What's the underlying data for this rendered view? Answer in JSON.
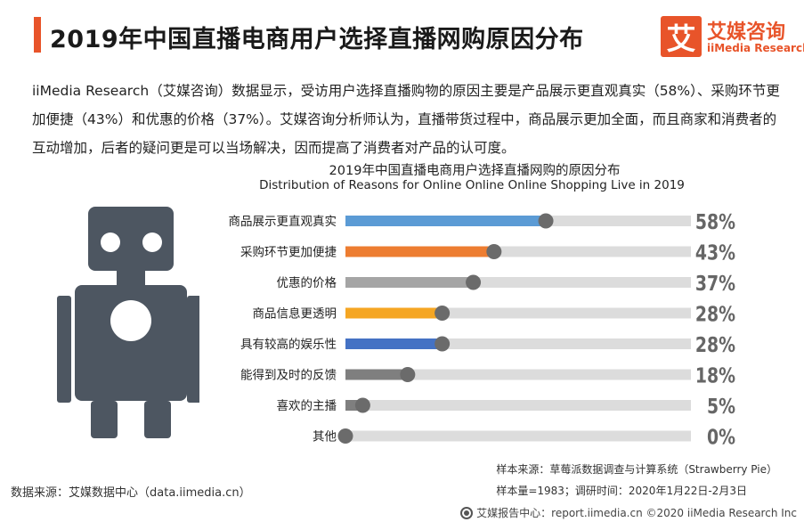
{
  "header": {
    "title": "2019年中国直播电商用户选择直播网购原因分布",
    "accent_color": "#e8542a"
  },
  "logo": {
    "mark": "艾",
    "name_cn": "艾媒咨询",
    "name_en": "iiMedia Research"
  },
  "intro_text": "iiMedia Research（艾媒咨询）数据显示，受访用户选择直播购物的原因主要是产品展示更直观真实（58%）、采购环节更加便捷（43%）和优惠的价格（37%）。艾媒咨询分析师认为，直播带货过程中，商品展示更加全面，而且商家和消费者的互动增加，后者的疑问更是可以当场解决，因而提高了消费者对产品的认可度。",
  "chart_data": {
    "type": "bar",
    "orientation": "horizontal",
    "title": "2019年中国直播电商用户选择直播网购的原因分布",
    "subtitle": "Distribution of Reasons for Online Online Online Shopping Live in 2019",
    "categories": [
      "商品展示更直观真实",
      "采购环节更加便捷",
      "优惠的价格",
      "商品信息更透明",
      "具有较高的娱乐性",
      "能得到及时的反馈",
      "喜欢的主播",
      "其他"
    ],
    "values": [
      58,
      43,
      37,
      28,
      28,
      18,
      5,
      0
    ],
    "value_labels": [
      "58%",
      "43%",
      "37%",
      "28%",
      "28%",
      "18%",
      "5%",
      "0%"
    ],
    "colors": [
      "#5b9bd5",
      "#ed7d31",
      "#a5a5a5",
      "#f5a623",
      "#4472c4",
      "#7f7f7f",
      "#7f7f7f",
      "#7f7f7f"
    ],
    "track_color": "#dcdcdc",
    "knob_color": "#6b6b6b",
    "xlim": [
      0,
      100
    ],
    "grid": false,
    "legend": "none"
  },
  "notes": {
    "sample_source": "样本来源：草莓派数据调查与计算系统（Strawberry Pie）",
    "sample_info": "样本量=1983；调研时间：2020年1月22日-2月3日"
  },
  "source": "数据来源：艾媒数据中心（data.iimedia.cn）",
  "footer": "艾媒报告中心：report.iimedia.cn  ©2020  iiMedia Research  Inc"
}
